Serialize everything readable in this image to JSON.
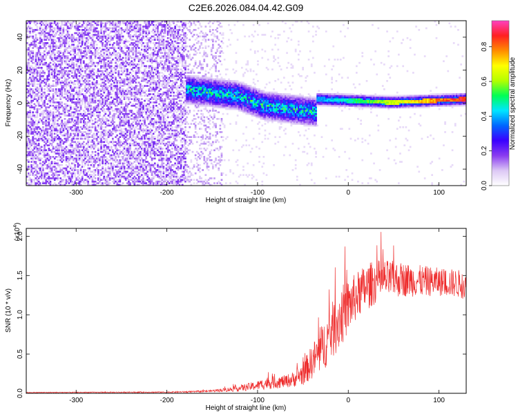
{
  "chart_data": [
    {
      "type": "heatmap",
      "title": "C2E6.2026.084.04.42.G09",
      "xlabel": "Height of straight line (km)",
      "ylabel": "Frequency (Hz)",
      "xlim": [
        -355,
        130
      ],
      "ylim": [
        -50,
        50
      ],
      "xticks": [
        -300,
        -200,
        -100,
        0,
        100
      ],
      "yticks": [
        -40,
        -20,
        0,
        20,
        40
      ],
      "xtick_labels": [
        "-300",
        "-200",
        "-100",
        "0",
        "100"
      ],
      "ytick_labels": [
        "-40",
        "-20",
        "0",
        "20",
        "40"
      ],
      "colorbar": {
        "label": "Normalized spectral amplitude",
        "range": [
          0,
          0.95
        ],
        "ticks": [
          0.0,
          0.2,
          0.4,
          0.6,
          0.8
        ],
        "tick_labels": [
          "0.0",
          "0.2",
          "0.4",
          "0.6",
          "0.8"
        ],
        "colormap": [
          "#ffffff",
          "#dcc8f5",
          "#8a3cf0",
          "#3a00ff",
          "#0066ff",
          "#00e6ff",
          "#00ff55",
          "#b4ff00",
          "#ffff00",
          "#ff8c00",
          "#ff2020",
          "#ff40c0"
        ]
      },
      "regions": [
        {
          "name": "noise",
          "x": [
            -355,
            -180
          ],
          "amplitude": [
            0.05,
            0.2
          ]
        },
        {
          "name": "transition",
          "x": [
            -180,
            -35
          ],
          "center_hz": [
            8,
            6,
            4,
            -2,
            -4,
            -6
          ],
          "amplitude": [
            0.15,
            0.4
          ]
        },
        {
          "name": "line",
          "x": [
            -35,
            130
          ],
          "center_hz": [
            2,
            1,
            0,
            1,
            2
          ],
          "amplitude": [
            0.4,
            0.95
          ]
        }
      ]
    },
    {
      "type": "line",
      "xlabel": "Height of straight line (km)",
      "ylabel": "SNR (10 * v/v)",
      "yscale_label": "(x10",
      "yscale_exponent": "4",
      "xlim": [
        -355,
        130
      ],
      "ylim": [
        0,
        2.1
      ],
      "xticks": [
        -300,
        -200,
        -100,
        0,
        100
      ],
      "yticks": [
        0.0,
        0.5,
        1.0,
        1.5,
        2.0
      ],
      "xtick_labels": [
        "-300",
        "-200",
        "-100",
        "0",
        "100"
      ],
      "ytick_labels": [
        "0.0",
        "0.5",
        "1.0",
        "1.5",
        "2.0"
      ],
      "series": [
        {
          "name": "SNR",
          "color": "#ee2c2c",
          "x": [
            -355,
            -300,
            -250,
            -200,
            -170,
            -150,
            -130,
            -110,
            -100,
            -90,
            -80,
            -70,
            -60,
            -50,
            -40,
            -30,
            -20,
            -10,
            0,
            10,
            20,
            30,
            40,
            60,
            80,
            100,
            120,
            130
          ],
          "y": [
            0.01,
            0.012,
            0.013,
            0.015,
            0.02,
            0.03,
            0.05,
            0.08,
            0.1,
            0.13,
            0.14,
            0.15,
            0.18,
            0.25,
            0.4,
            0.55,
            0.75,
            0.95,
            1.1,
            1.25,
            1.35,
            1.42,
            1.45,
            1.45,
            1.43,
            1.42,
            1.4,
            1.37
          ],
          "noise_amplitude": [
            0.005,
            0.005,
            0.006,
            0.007,
            0.01,
            0.015,
            0.03,
            0.05,
            0.06,
            0.08,
            0.08,
            0.08,
            0.1,
            0.15,
            0.22,
            0.3,
            0.35,
            0.4,
            0.35,
            0.3,
            0.3,
            0.28,
            0.25,
            0.22,
            0.2,
            0.18,
            0.18,
            0.18
          ]
        }
      ]
    }
  ]
}
